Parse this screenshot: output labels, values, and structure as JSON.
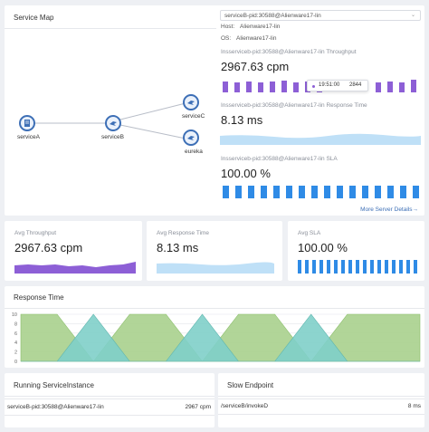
{
  "service_map": {
    "title": "Service Map",
    "nodes": [
      {
        "label": "serviceA"
      },
      {
        "label": "serviceB"
      },
      {
        "label": "serviceC"
      },
      {
        "label": "eureka"
      }
    ]
  },
  "instance_panel": {
    "selected_instance": "serviceB-pid:30588@Alienware17-lin",
    "host_label": "Host:",
    "host_value": "Alienware17-lin",
    "os_label": "OS:",
    "os_value": "Alienware17-lin",
    "throughput_title": "Insserviceb-pid:30588@Alienware17-lin Throughput",
    "throughput_value": "2967.63 cpm",
    "tooltip_time": "19:51:00",
    "tooltip_value": "2844",
    "response_title": "Insserviceb-pid:30588@Alienware17-lin Response Time",
    "response_value": "8.13 ms",
    "sla_title": "Insserviceb-pid:30588@Alienware17-lin SLA",
    "sla_value": "100.00 %",
    "more_link": "More Server Details→"
  },
  "metrics": {
    "throughput_label": "Avg Throughput",
    "throughput_value": "2967.63 cpm",
    "response_label": "Avg Response Time",
    "response_value": "8.13 ms",
    "sla_label": "Avg SLA",
    "sla_value": "100.00 %"
  },
  "response_time": {
    "title": "Response Time",
    "y_ticks": [
      "10",
      "8",
      "6",
      "4",
      "2",
      "0"
    ]
  },
  "chart_data": {
    "type": "area",
    "title": "Response Time",
    "ylim": [
      0,
      10
    ],
    "y_ticks": [
      0,
      2,
      4,
      6,
      8,
      10
    ],
    "series": [
      {
        "values": [
          10,
          10,
          0,
          10,
          10,
          0,
          10,
          10,
          0,
          10,
          10,
          10
        ],
        "color": "#a8d08d"
      },
      {
        "values": [
          0,
          0,
          10,
          0,
          0,
          10,
          0,
          0,
          10,
          0,
          0,
          0
        ],
        "color": "#7fcfc9"
      }
    ],
    "grid": true
  },
  "running": {
    "title": "Running ServiceInstance",
    "rows": [
      {
        "name": "serviceB-pid:30588@Alienware17-lin",
        "value": "2967 cpm"
      }
    ]
  },
  "slow": {
    "title": "Slow Endpoint",
    "rows": [
      {
        "name": "/serviceB/invokeD",
        "value": "8 ms"
      }
    ]
  },
  "colors": {
    "purple": "#8d5fd6",
    "light_blue": "#bfe0f7",
    "blue": "#2f8be6",
    "node_blue": "#3d6fb6",
    "green_area": "#a8d08d",
    "teal_area": "#7fcfc9"
  }
}
